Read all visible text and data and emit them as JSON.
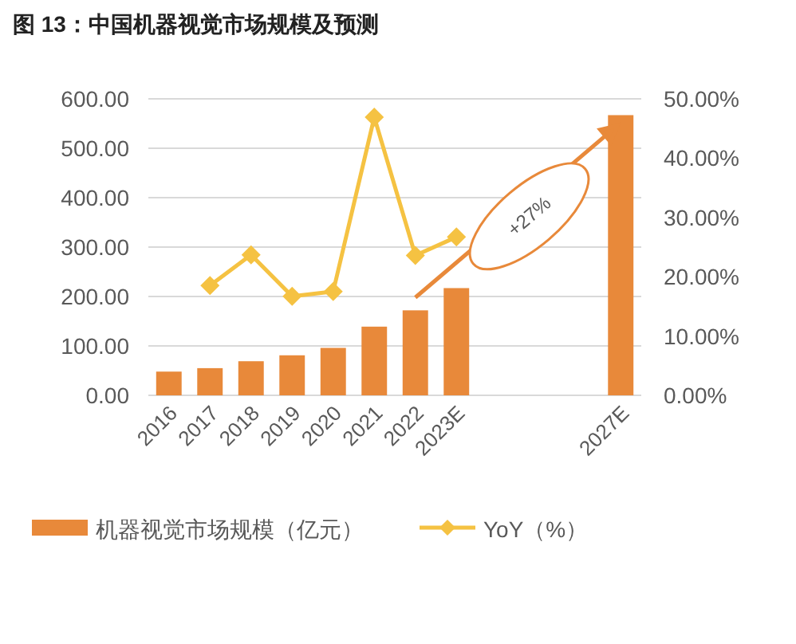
{
  "chart_data": {
    "type": "bar",
    "title": "图 13：中国机器视觉市场规模及预测",
    "categories": [
      "2016",
      "2017",
      "2018",
      "2019",
      "2020",
      "2021",
      "2022",
      "2023E",
      null,
      null,
      null,
      "2027E"
    ],
    "series": [
      {
        "name": "机器视觉市场规模（亿元）",
        "color": "#e8893a",
        "values": [
          48,
          55,
          69,
          81,
          96,
          139,
          172,
          217,
          null,
          null,
          null,
          567
        ]
      },
      {
        "name": "YoY（%）",
        "type": "line",
        "axis": "y2",
        "color": "#f5c242",
        "marker": "diamond",
        "values": [
          null,
          18.5,
          23.7,
          16.7,
          17.5,
          46.9,
          23.6,
          26.7,
          null,
          null,
          null,
          null
        ]
      }
    ],
    "ylim": [
      0,
      600
    ],
    "yticks": [
      {
        "value": 0,
        "label": "0.00"
      },
      {
        "value": 100,
        "label": "100.00"
      },
      {
        "value": 200,
        "label": "200.00"
      },
      {
        "value": 300,
        "label": "300.00"
      },
      {
        "value": 400,
        "label": "400.00"
      },
      {
        "value": 500,
        "label": "500.00"
      },
      {
        "value": 600,
        "label": "600.00"
      }
    ],
    "y2lim": [
      0,
      50
    ],
    "y2ticks": [
      {
        "value": 0,
        "label": "0.00%"
      },
      {
        "value": 10,
        "label": "10.00%"
      },
      {
        "value": 20,
        "label": "20.00%"
      },
      {
        "value": 30,
        "label": "30.00%"
      },
      {
        "value": 40,
        "label": "40.00%"
      },
      {
        "value": 50,
        "label": "50.00%"
      }
    ],
    "grid": "y",
    "legend": "bottom",
    "annotations": [
      "+27%"
    ]
  }
}
